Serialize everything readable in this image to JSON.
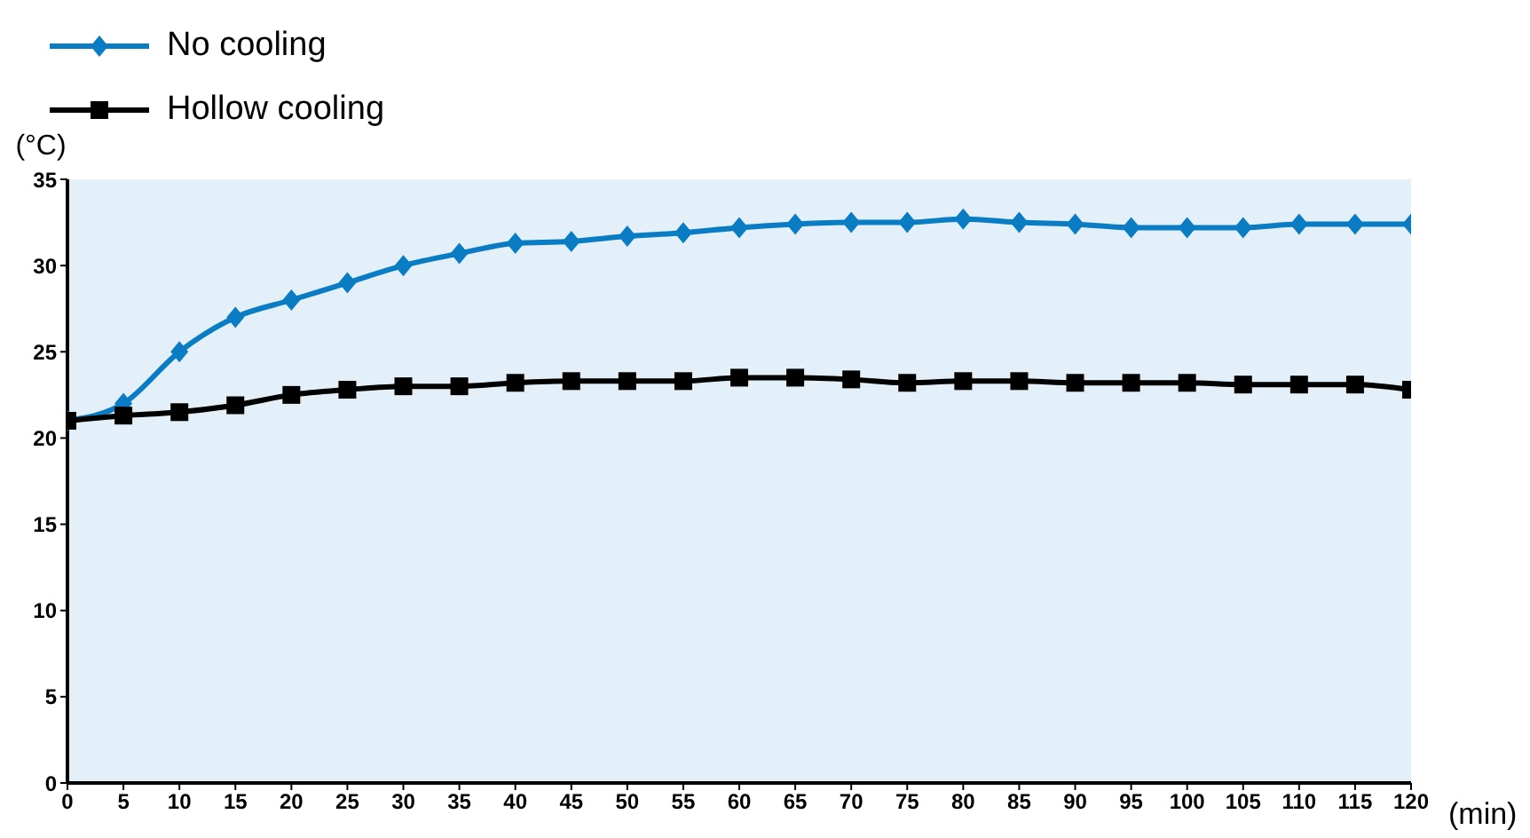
{
  "chart_data": {
    "type": "line",
    "ylabel": "(°C)",
    "xlabel": "(min)",
    "x": [
      0,
      5,
      10,
      15,
      20,
      25,
      30,
      35,
      40,
      45,
      50,
      55,
      60,
      65,
      70,
      75,
      80,
      85,
      90,
      95,
      100,
      105,
      110,
      115,
      120
    ],
    "series": [
      {
        "name": "No cooling",
        "color": "#0a7cc4",
        "marker": "diamond",
        "values": [
          21,
          22,
          25,
          27,
          28,
          29,
          30,
          30.7,
          31.3,
          31.4,
          31.7,
          31.9,
          32.2,
          32.4,
          32.5,
          32.5,
          32.7,
          32.5,
          32.4,
          32.2,
          32.2,
          32.2,
          32.4,
          32.4,
          32.4
        ]
      },
      {
        "name": "Hollow cooling",
        "color": "#000000",
        "marker": "square",
        "values": [
          21,
          21.3,
          21.5,
          21.9,
          22.5,
          22.8,
          23,
          23,
          23.2,
          23.3,
          23.3,
          23.3,
          23.5,
          23.5,
          23.4,
          23.2,
          23.3,
          23.3,
          23.2,
          23.2,
          23.2,
          23.1,
          23.1,
          23.1,
          22.8
        ]
      }
    ],
    "xlim": [
      0,
      120
    ],
    "xticks": [
      0,
      5,
      10,
      15,
      20,
      25,
      30,
      35,
      40,
      45,
      50,
      55,
      60,
      65,
      70,
      75,
      80,
      85,
      90,
      95,
      100,
      105,
      110,
      115,
      120
    ],
    "ylim": [
      0,
      35
    ],
    "yticks": [
      0,
      5,
      10,
      15,
      20,
      25,
      30,
      35
    ],
    "grid": false,
    "legend": "top left",
    "line_style": "solid"
  }
}
